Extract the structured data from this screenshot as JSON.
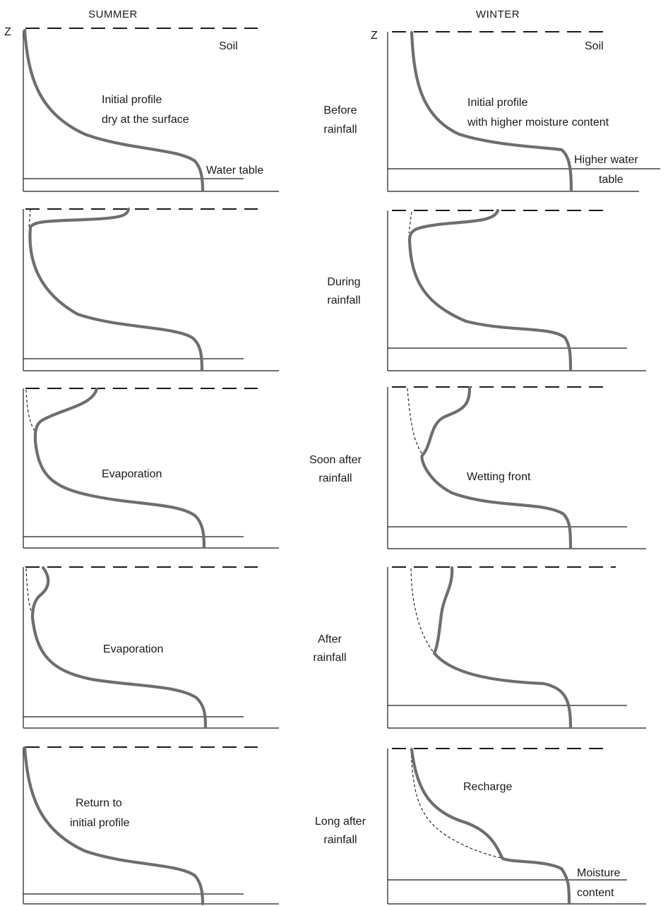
{
  "headers": {
    "summer": "SUMMER",
    "winter": "WINTER"
  },
  "axis_label": "Z",
  "stages": [
    {
      "label_lines": [
        "Before",
        "rainfall"
      ],
      "summer_note": [
        "Initial profile",
        "dry at the surface"
      ],
      "winter_note": [
        "Initial profile",
        "with higher moisture content"
      ]
    },
    {
      "label_lines": [
        "During",
        "rainfall"
      ],
      "summer_note": [],
      "winter_note": []
    },
    {
      "label_lines": [
        "Soon after",
        "rainfall"
      ],
      "summer_note": [
        "Evaporation"
      ],
      "winter_note": [
        "Wetting front"
      ]
    },
    {
      "label_lines": [
        "After",
        "rainfall"
      ],
      "summer_note": [
        "Evaporation"
      ],
      "winter_note": []
    },
    {
      "label_lines": [
        "Long after",
        "rainfall"
      ],
      "summer_note": [
        "Return to",
        "initial profile"
      ],
      "winter_note": [
        "Recharge"
      ]
    }
  ],
  "labels": {
    "soil": "Soil",
    "water_table": "Water table",
    "higher_water_table": [
      "Higher water",
      "table"
    ],
    "moisture_content": [
      "Moisture",
      "content"
    ]
  },
  "colors": {
    "profile": "#6e6e6e",
    "lines": "#1a1a1a"
  }
}
